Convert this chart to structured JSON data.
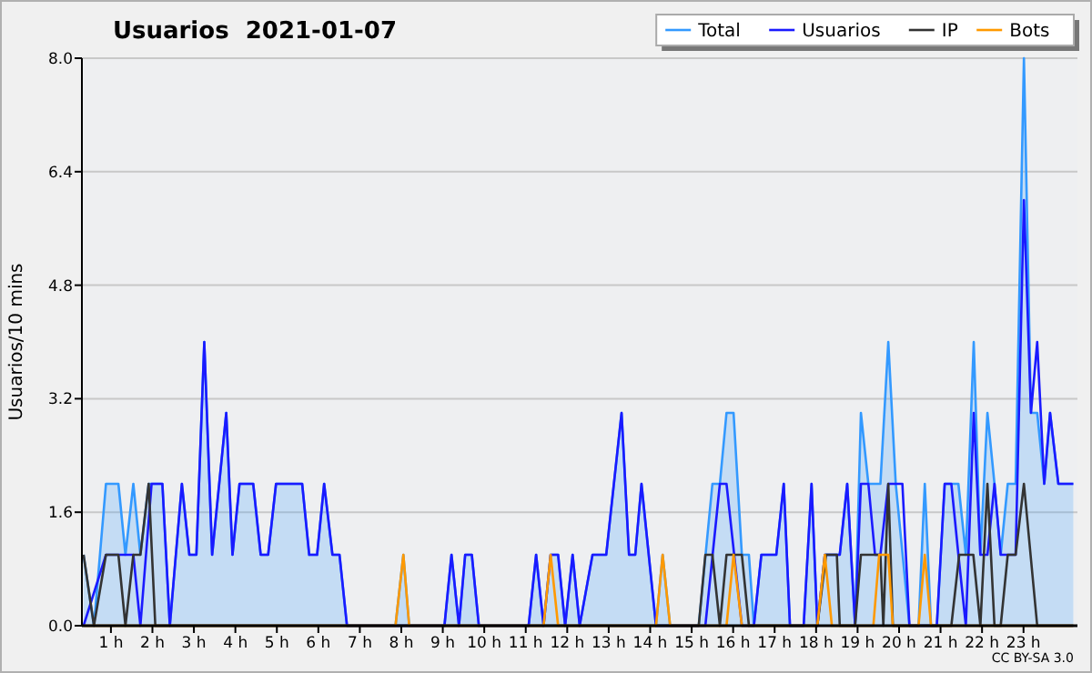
{
  "chart_data": {
    "type": "line",
    "title": "Usuarios  2021-01-07",
    "ylabel": "Usuarios/10 mins",
    "annotations": [
      "CC BY-SA 3.0"
    ],
    "xlim": [
      0.3,
      24.3
    ],
    "xticks": [
      {
        "value": 1,
        "label": "1 h"
      },
      {
        "value": 2,
        "label": "2 h"
      },
      {
        "value": 3,
        "label": "3 h"
      },
      {
        "value": 4,
        "label": "4 h"
      },
      {
        "value": 5,
        "label": "5 h"
      },
      {
        "value": 6,
        "label": "6 h"
      },
      {
        "value": 7,
        "label": "7 h"
      },
      {
        "value": 8,
        "label": "8 h"
      },
      {
        "value": 9,
        "label": "9 h"
      },
      {
        "value": 10,
        "label": "10 h"
      },
      {
        "value": 11,
        "label": "11 h"
      },
      {
        "value": 12,
        "label": "12 h"
      },
      {
        "value": 13,
        "label": "13 h"
      },
      {
        "value": 14,
        "label": "14 h"
      },
      {
        "value": 15,
        "label": "15 h"
      },
      {
        "value": 16,
        "label": "16 h"
      },
      {
        "value": 17,
        "label": "17 h"
      },
      {
        "value": 18,
        "label": "18 h"
      },
      {
        "value": 19,
        "label": "19 h"
      },
      {
        "value": 20,
        "label": "20 h"
      },
      {
        "value": 21,
        "label": "21 h"
      },
      {
        "value": 22,
        "label": "22 h"
      },
      {
        "value": 23,
        "label": "23 h"
      }
    ],
    "ylim": [
      0,
      8
    ],
    "yticks": [
      {
        "value": 0,
        "label": "0.0"
      },
      {
        "value": 1.6,
        "label": "1.6"
      },
      {
        "value": 3.2,
        "label": "3.2"
      },
      {
        "value": 4.8,
        "label": "4.8"
      },
      {
        "value": 6.4,
        "label": "6.4"
      },
      {
        "value": 8,
        "label": "8.0"
      }
    ],
    "grid": "y",
    "legend": "top right",
    "marker": "none",
    "line_style": "solid",
    "series": [
      {
        "name": "Total",
        "type": "area",
        "color": "#3399ff",
        "x": [
          0.34,
          0.59,
          0.88,
          1.18,
          1.35,
          1.54,
          1.71,
          1.91,
          2.24,
          2.42,
          2.71,
          2.89,
          3.06,
          3.25,
          3.44,
          3.78,
          3.93,
          4.1,
          4.43,
          4.61,
          4.79,
          4.98,
          5.61,
          5.78,
          5.97,
          6.14,
          6.34,
          6.51,
          6.69,
          7.86,
          8.05,
          8.19,
          9.04,
          9.21,
          9.39,
          9.54,
          9.7,
          9.87,
          11.07,
          11.25,
          11.43,
          11.6,
          11.78,
          11.95,
          12.13,
          12.3,
          12.61,
          12.94,
          13.31,
          13.49,
          13.64,
          13.79,
          14.14,
          14.3,
          14.48,
          15.17,
          15.5,
          15.68,
          15.84,
          16.01,
          16.21,
          16.38,
          16.5,
          16.68,
          17.04,
          17.22,
          17.37,
          17.7,
          17.89,
          18.03,
          18.21,
          18.57,
          18.75,
          18.94,
          19.08,
          19.26,
          19.55,
          19.74,
          19.92,
          20.25,
          20.47,
          20.62,
          20.77,
          20.91,
          21.1,
          21.43,
          21.61,
          21.8,
          21.96,
          22.13,
          22.3,
          22.45,
          22.62,
          22.81,
          23.01,
          23.18,
          23.33,
          23.5,
          23.64,
          23.84,
          24.2
        ],
        "values": [
          1,
          0,
          2,
          2,
          1,
          2,
          1,
          2,
          2,
          0,
          2,
          1,
          1,
          4,
          1,
          3,
          1,
          2,
          2,
          1,
          1,
          2,
          2,
          1,
          1,
          2,
          1,
          1,
          0,
          0,
          1,
          0,
          0,
          1,
          0,
          1,
          1,
          0,
          0,
          1,
          0,
          1,
          1,
          0,
          1,
          0,
          1,
          1,
          3,
          1,
          1,
          2,
          0,
          1,
          0,
          0,
          2,
          2,
          3,
          3,
          1,
          1,
          0,
          1,
          1,
          2,
          0,
          0,
          2,
          0,
          1,
          1,
          2,
          0,
          3,
          2,
          2,
          4,
          2,
          0,
          0,
          2,
          0,
          0,
          2,
          2,
          1,
          4,
          1,
          3,
          2,
          1,
          2,
          2,
          8,
          3,
          3,
          2,
          3,
          2,
          2
        ]
      },
      {
        "name": "Usuarios",
        "color": "#1a1aff",
        "x": [
          0.34,
          0.88,
          1.54,
          1.71,
          1.98,
          2.24,
          2.42,
          2.71,
          2.89,
          3.06,
          3.25,
          3.44,
          3.78,
          3.93,
          4.1,
          4.43,
          4.61,
          4.79,
          4.98,
          5.61,
          5.78,
          5.97,
          6.14,
          6.34,
          6.51,
          6.69,
          9.04,
          9.21,
          9.39,
          9.54,
          9.7,
          9.87,
          11.07,
          11.25,
          11.43,
          11.6,
          11.78,
          11.95,
          12.13,
          12.3,
          12.61,
          12.94,
          13.31,
          13.49,
          13.64,
          13.79,
          14.14,
          15.33,
          15.68,
          15.84,
          16.21,
          16.5,
          16.68,
          17.04,
          17.22,
          17.37,
          17.7,
          17.89,
          18.03,
          18.21,
          18.57,
          18.75,
          18.94,
          19.08,
          19.26,
          19.42,
          19.55,
          19.74,
          20.08,
          20.25,
          20.91,
          21.1,
          21.26,
          21.43,
          21.61,
          21.8,
          21.96,
          22.13,
          22.3,
          22.45,
          22.81,
          23.01,
          23.18,
          23.33,
          23.5,
          23.64,
          23.84,
          24.2
        ],
        "values": [
          0,
          1,
          1,
          0,
          2,
          2,
          0,
          2,
          1,
          1,
          4,
          1,
          3,
          1,
          2,
          2,
          1,
          1,
          2,
          2,
          1,
          1,
          2,
          1,
          1,
          0,
          0,
          1,
          0,
          1,
          1,
          0,
          0,
          1,
          0,
          1,
          1,
          0,
          1,
          0,
          1,
          1,
          3,
          1,
          1,
          2,
          0,
          0,
          2,
          2,
          0,
          0,
          1,
          1,
          2,
          0,
          0,
          2,
          0,
          1,
          1,
          2,
          0,
          2,
          2,
          1,
          1,
          2,
          2,
          0,
          0,
          2,
          2,
          1,
          0,
          3,
          1,
          1,
          2,
          1,
          1,
          6,
          3,
          4,
          2,
          3,
          2,
          2
        ]
      },
      {
        "name": "IP",
        "color": "#333333",
        "x": [
          0.34,
          0.59,
          0.88,
          1.18,
          1.35,
          1.54,
          1.71,
          1.91,
          2.07,
          15.17,
          15.33,
          15.5,
          15.68,
          15.84,
          16.21,
          16.38,
          18.03,
          18.24,
          18.5,
          18.57,
          18.94,
          19.08,
          19.55,
          19.62,
          19.74,
          19.85,
          21.26,
          21.45,
          21.79,
          21.96,
          22.13,
          22.3,
          22.45,
          22.62,
          22.81,
          23.01,
          23.33,
          24.2
        ],
        "values": [
          1,
          0,
          1,
          1,
          0,
          1,
          1,
          2,
          0,
          0,
          1,
          1,
          0,
          1,
          1,
          0,
          0,
          1,
          1,
          0,
          0,
          1,
          1,
          0,
          2,
          0,
          0,
          1,
          1,
          0,
          2,
          0,
          0,
          1,
          1,
          2,
          0,
          0
        ]
      },
      {
        "name": "Bots",
        "color": "#ff9900",
        "x": [
          0.34,
          7.86,
          8.05,
          8.19,
          11.43,
          11.6,
          11.78,
          14.14,
          14.3,
          14.48,
          15.84,
          16.01,
          16.21,
          18.03,
          18.21,
          18.38,
          19.38,
          19.52,
          19.74,
          19.85,
          20.47,
          20.62,
          20.77,
          24.2
        ],
        "values": [
          0,
          0,
          1,
          0,
          0,
          1,
          0,
          0,
          1,
          0,
          0,
          1,
          0,
          0,
          1,
          0,
          0,
          1,
          1,
          0,
          0,
          1,
          0,
          0
        ]
      }
    ]
  }
}
